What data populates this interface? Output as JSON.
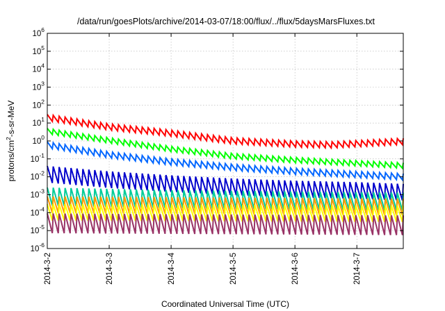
{
  "chart_data": {
    "type": "line",
    "title": "/data/run/goesPlots/archive/2014-03-07/18:00/flux/../flux/5daysMarsFluxes.txt",
    "xlabel": "Coordinated Universal Time (UTC)",
    "ylabel": {
      "base": "protons/cm",
      "sup": "2",
      "rest": "-s-sr-MeV"
    },
    "yscale": "log",
    "ylim_exp": [
      -6,
      6
    ],
    "y_ticks": [
      {
        "base": "10",
        "exp": "-6"
      },
      {
        "base": "10",
        "exp": "-5"
      },
      {
        "base": "10",
        "exp": "-4"
      },
      {
        "base": "10",
        "exp": "-3"
      },
      {
        "base": "10",
        "exp": "-2"
      },
      {
        "base": "10",
        "exp": "-1"
      },
      {
        "base": "10",
        "exp": "0"
      },
      {
        "base": "10",
        "exp": "1"
      },
      {
        "base": "10",
        "exp": "2"
      },
      {
        "base": "10",
        "exp": "3"
      },
      {
        "base": "10",
        "exp": "4"
      },
      {
        "base": "10",
        "exp": "5"
      },
      {
        "base": "10",
        "exp": "6"
      }
    ],
    "xlim": [
      "2014-03-02T00:00",
      "2014-03-07T18:00"
    ],
    "x_ticks": [
      "2014-3-2",
      "2014-3-3",
      "2014-3-4",
      "2014-3-5",
      "2014-3-6",
      "2014-3-7"
    ],
    "grid": true,
    "oscillation_cycles": 60,
    "series": [
      {
        "color": "#ff0000",
        "high": [
          [
            0,
            30
          ],
          [
            1,
            9
          ],
          [
            2,
            4
          ],
          [
            3,
            1.5
          ],
          [
            4,
            1.0
          ],
          [
            4.6,
            0.9
          ],
          [
            5.75,
            1.4
          ]
        ],
        "low_ratio": 0.45
      },
      {
        "color": "#00ff00",
        "high": [
          [
            0,
            5
          ],
          [
            1,
            1.5
          ],
          [
            2,
            0.5
          ],
          [
            3,
            0.2
          ],
          [
            4,
            0.12
          ],
          [
            5,
            0.08
          ],
          [
            5.75,
            0.06
          ]
        ],
        "low_ratio": 0.5
      },
      {
        "color": "#0066ff",
        "high": [
          [
            0,
            0.9
          ],
          [
            1,
            0.25
          ],
          [
            2,
            0.1
          ],
          [
            3,
            0.05
          ],
          [
            4,
            0.03
          ],
          [
            5,
            0.02
          ],
          [
            5.75,
            0.015
          ]
        ],
        "low_ratio": 0.45
      },
      {
        "color": "#0000cc",
        "high": [
          [
            0,
            0.04
          ],
          [
            1,
            0.02
          ],
          [
            2,
            0.012
          ],
          [
            3,
            0.008
          ],
          [
            4,
            0.006
          ],
          [
            5,
            0.005
          ],
          [
            5.75,
            0.004
          ]
        ],
        "low_ratio": 0.12
      },
      {
        "color": "#00cc99",
        "high": [
          [
            0,
            0.0025
          ],
          [
            2,
            0.0018
          ],
          [
            4,
            0.0015
          ],
          [
            5.75,
            0.0013
          ]
        ],
        "low_ratio": 0.1
      },
      {
        "color": "#ff9900",
        "high": [
          [
            0,
            0.0008
          ],
          [
            5.75,
            0.0006
          ]
        ],
        "low_ratio": 0.12
      },
      {
        "color": "#ffff00",
        "high": [
          [
            0,
            0.0003
          ],
          [
            5.75,
            0.00025
          ]
        ],
        "low_ratio": 0.12
      },
      {
        "color": "#993366",
        "high": [
          [
            0,
            9e-05
          ],
          [
            5.75,
            7e-05
          ]
        ],
        "low_ratio": 0.08
      }
    ]
  }
}
